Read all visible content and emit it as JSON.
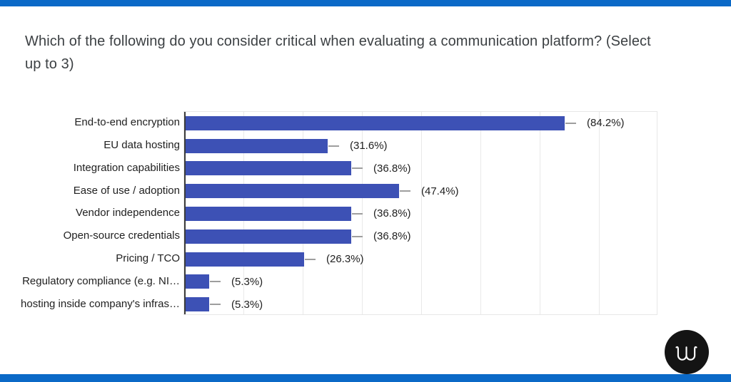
{
  "accent": {
    "band_color": "#0b69c7"
  },
  "title": {
    "line1": "Which of the following do you consider critical when evaluating a communication platform? (Select",
    "line2": "up to 3)"
  },
  "chart_data": {
    "type": "bar",
    "orientation": "horizontal",
    "title": "Which of the following do you consider critical when evaluating a communication platform? (Select up to 3)",
    "categories": [
      "End-to-end encryption",
      "EU data hosting",
      "Integration capabilities",
      "Ease of use / adoption",
      "Vendor independence",
      "Open-source credentials",
      "Pricing / TCO",
      "Regulatory compliance (e.g. NI…",
      "hosting inside company's infras…"
    ],
    "values": [
      84.2,
      31.6,
      36.8,
      47.4,
      36.8,
      36.8,
      26.3,
      5.3,
      5.3
    ],
    "value_labels": [
      "(84.2%)",
      "(31.6%)",
      "(36.8%)",
      "(47.4%)",
      "(36.8%)",
      "(36.8%)",
      "(26.3%)",
      "(5.3%)",
      "(5.3%)"
    ],
    "xlabel": "",
    "ylabel": "",
    "xlim": [
      0,
      105.3
    ],
    "x_tick_labels_visible": false,
    "gridline_count": 8,
    "grid": true,
    "legend": false,
    "bar_color": "#3d51b5",
    "whisker_color": "#9e9e9e",
    "axis_line_color": "#3c3c3c",
    "gridline_color": "#e9e9e9"
  },
  "logo": {
    "name": "w-monogram",
    "background": "#141414",
    "glyph_color": "#ffffff"
  }
}
